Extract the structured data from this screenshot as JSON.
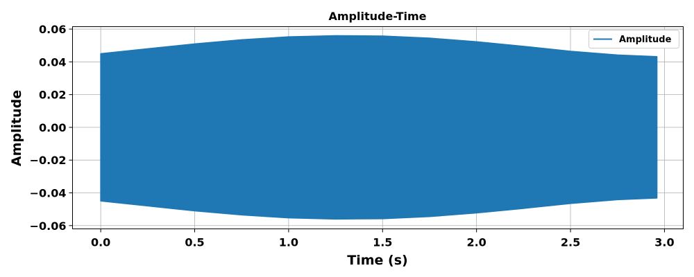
{
  "chart_data": {
    "type": "line",
    "title": "Amplitude-Time",
    "xlabel": "Time (s)",
    "ylabel": "Amplitude",
    "xlim": [
      -0.15,
      3.1
    ],
    "ylim": [
      -0.062,
      0.0615
    ],
    "xticks": [
      0.0,
      0.5,
      1.0,
      1.5,
      2.0,
      2.5,
      3.0
    ],
    "xtick_labels": [
      "0.0",
      "0.5",
      "1.0",
      "1.5",
      "2.0",
      "2.5",
      "3.0"
    ],
    "yticks": [
      0.06,
      0.04,
      0.02,
      0.0,
      -0.02,
      -0.04,
      -0.06
    ],
    "ytick_labels": [
      "0.06",
      "0.04",
      "0.02",
      "0.00",
      "−0.02",
      "−0.04",
      "−0.06"
    ],
    "grid": true,
    "legend_position": "top-right",
    "series": [
      {
        "name": "Amplitude",
        "color": "#1f77b4",
        "envelope": {
          "t": [
            0.0,
            0.25,
            0.5,
            0.75,
            1.0,
            1.25,
            1.5,
            1.75,
            2.0,
            2.25,
            2.5,
            2.75,
            2.96
          ],
          "upper": [
            0.045,
            0.048,
            0.051,
            0.0535,
            0.0553,
            0.056,
            0.0558,
            0.0545,
            0.0523,
            0.0495,
            0.0465,
            0.0442,
            0.0432
          ],
          "lower": [
            -0.045,
            -0.048,
            -0.051,
            -0.0535,
            -0.0553,
            -0.056,
            -0.0558,
            -0.0545,
            -0.0523,
            -0.0495,
            -0.0465,
            -0.0442,
            -0.0432
          ]
        }
      }
    ]
  }
}
